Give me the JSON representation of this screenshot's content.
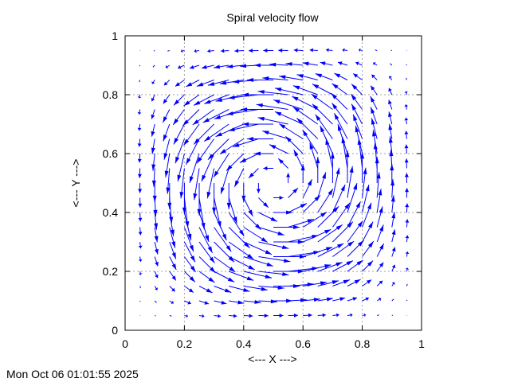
{
  "chart_data": {
    "type": "vector-field",
    "title": "Spiral velocity flow",
    "xlabel": "<--- X --->",
    "ylabel": "<--- Y --->",
    "xlim": [
      0,
      1
    ],
    "ylim": [
      0,
      1
    ],
    "xticks": [
      "0",
      "0.2",
      "0.4",
      "0.6",
      "0.8",
      "1"
    ],
    "yticks": [
      "0",
      "0.2",
      "0.4",
      "0.6",
      "0.8",
      "1"
    ],
    "grid": true,
    "rotation": "counterclockwise",
    "sample_start": 0.05,
    "sample_step": 0.05,
    "sample_end": 0.95,
    "vector_color": "#0000ff"
  },
  "timestamp": "Mon Oct 06 01:01:55 2025"
}
